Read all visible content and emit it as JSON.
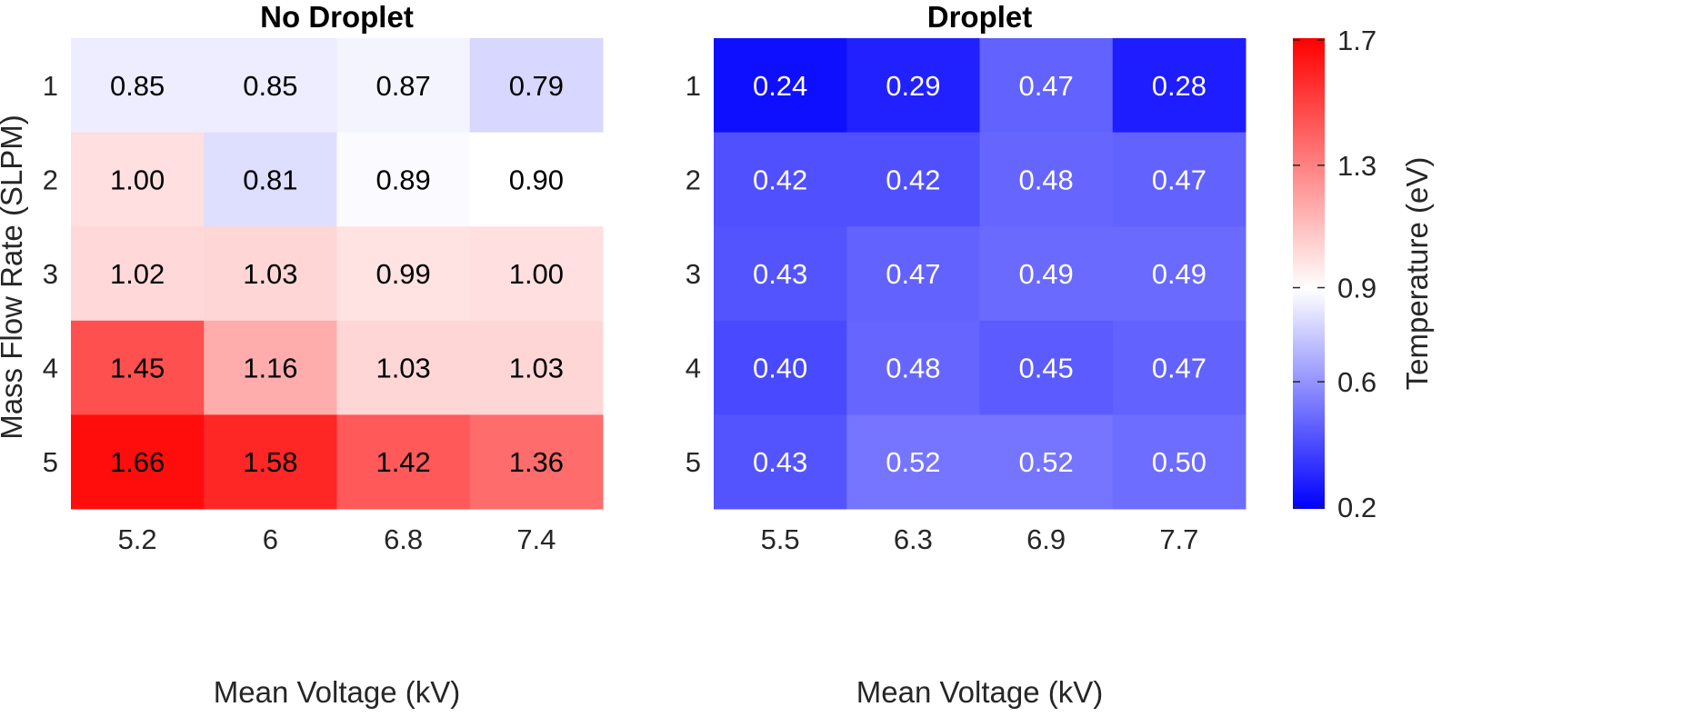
{
  "colors": {
    "low": "#0000ff",
    "mid": "#ffffff",
    "high": "#ff0000",
    "text_dark": "#000000",
    "text_light": "#ffffff"
  },
  "chart_data": [
    {
      "type": "heatmap",
      "title": "No Droplet",
      "xlabel": "Mean Voltage (kV)",
      "ylabel": "Mass Flow Rate (SLPM)",
      "x": [
        "5.2",
        "6",
        "6.8",
        "7.4"
      ],
      "y": [
        "1",
        "2",
        "3",
        "4",
        "5"
      ],
      "values": [
        [
          0.85,
          0.85,
          0.87,
          0.79
        ],
        [
          1.0,
          0.81,
          0.89,
          0.9
        ],
        [
          1.02,
          1.03,
          0.99,
          1.0
        ],
        [
          1.45,
          1.16,
          1.03,
          1.03
        ],
        [
          1.66,
          1.58,
          1.42,
          1.36
        ]
      ],
      "labels": [
        [
          "0.85",
          "0.85",
          "0.87",
          "0.79"
        ],
        [
          "1.00",
          "0.81",
          "0.89",
          "0.90"
        ],
        [
          "1.02",
          "1.03",
          "0.99",
          "1.00"
        ],
        [
          "1.45",
          "1.16",
          "1.03",
          "1.03"
        ],
        [
          "1.66",
          "1.58",
          "1.42",
          "1.36"
        ]
      ]
    },
    {
      "type": "heatmap",
      "title": "Droplet",
      "xlabel": "Mean Voltage (kV)",
      "ylabel": "",
      "x": [
        "5.5",
        "6.3",
        "6.9",
        "7.7"
      ],
      "y": [
        "1",
        "2",
        "3",
        "4",
        "5"
      ],
      "values": [
        [
          0.24,
          0.29,
          0.47,
          0.28
        ],
        [
          0.42,
          0.42,
          0.48,
          0.47
        ],
        [
          0.43,
          0.47,
          0.49,
          0.49
        ],
        [
          0.4,
          0.48,
          0.45,
          0.47
        ],
        [
          0.43,
          0.52,
          0.52,
          0.5
        ]
      ],
      "labels": [
        [
          "0.24",
          "0.29",
          "0.47",
          "0.28"
        ],
        [
          "0.42",
          "0.42",
          "0.48",
          "0.47"
        ],
        [
          "0.43",
          "0.47",
          "0.49",
          "0.49"
        ],
        [
          "0.40",
          "0.48",
          "0.45",
          "0.47"
        ],
        [
          "0.43",
          "0.52",
          "0.52",
          "0.50"
        ]
      ]
    }
  ],
  "colorbar": {
    "label": "Temperature (eV)",
    "range": [
      0.2,
      1.7
    ],
    "center": 0.9,
    "ticks": [
      "1.7",
      "1.3",
      "0.9",
      "0.6",
      "0.2"
    ]
  }
}
